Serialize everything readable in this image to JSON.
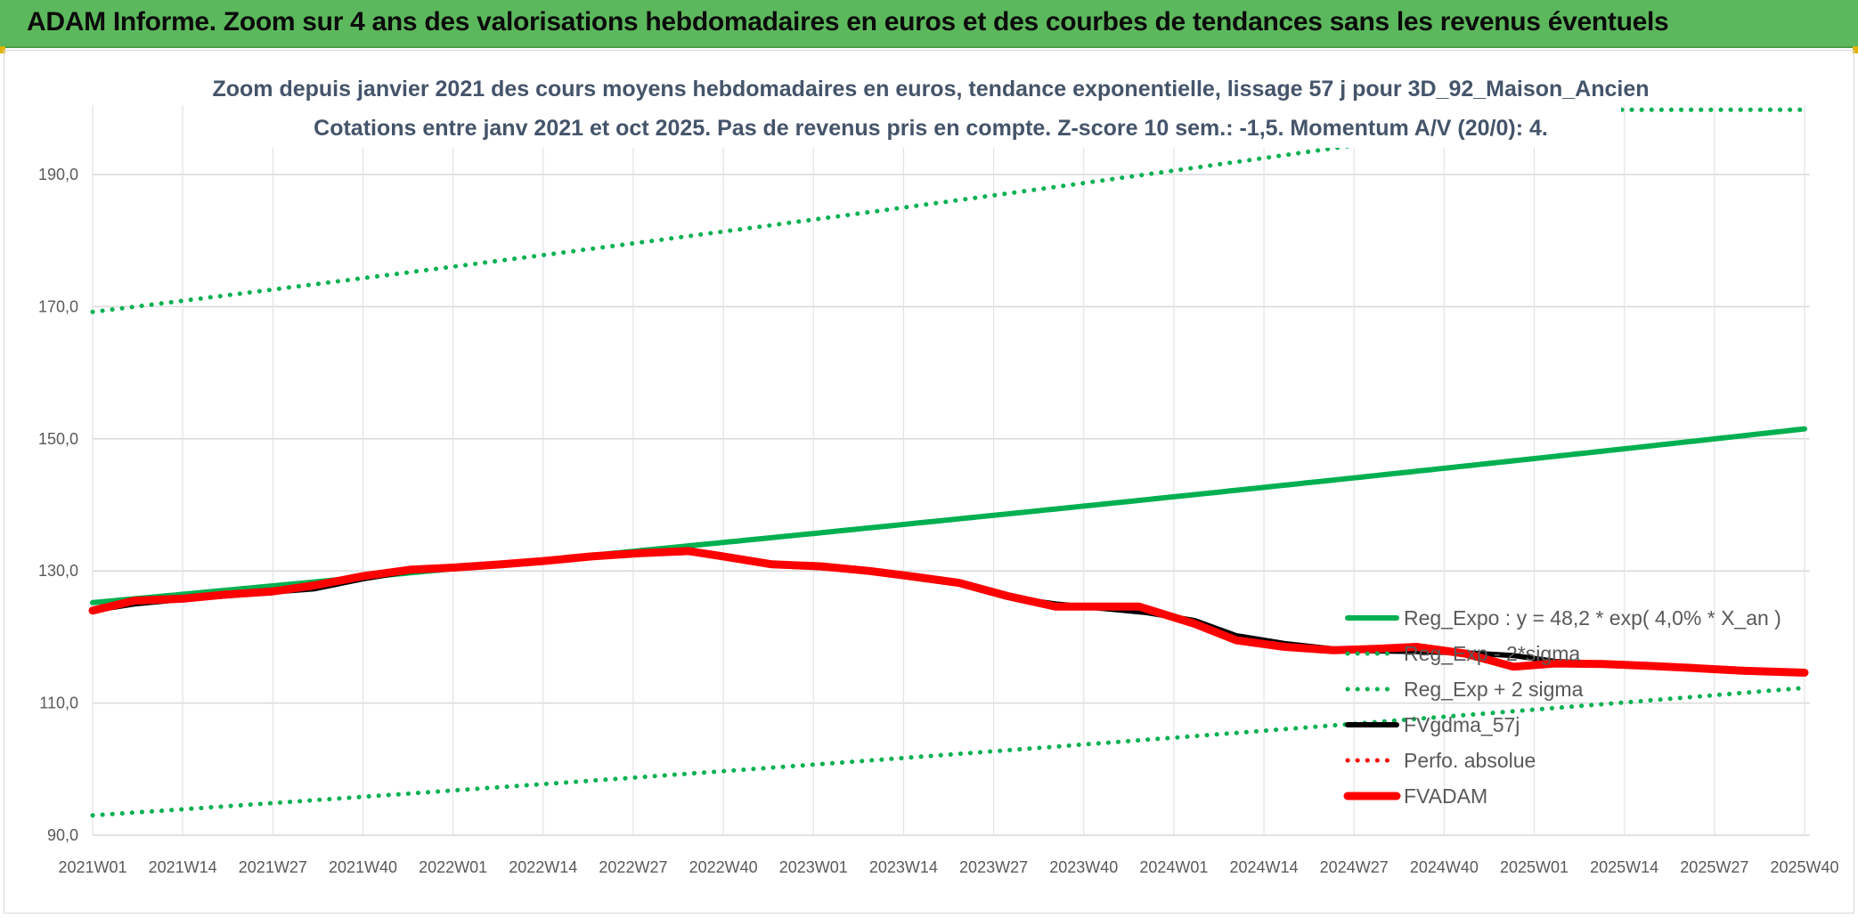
{
  "banner": {
    "title": "ADAM Informe. Zoom sur 4 ans des valorisations hebdomadaires en euros et des courbes de tendances sans les revenus éventuels",
    "color": "#5cb85c"
  },
  "chart_data": {
    "type": "line",
    "title": "Zoom depuis janvier 2021 des cours moyens hebdomadaires en euros, tendance exponentielle, lissage 57 j pour 3D_92_Maison_Ancien",
    "subtitle": "Cotations entre janv 2021 et oct 2025. Pas de revenus pris en compte. Z-score 10 sem.: -1,5. Momentum A/V (20/0): 4.",
    "xlabel": "",
    "ylabel": "",
    "ylim": [
      90,
      200
    ],
    "y_ticks": [
      "90,0",
      "110,0",
      "130,0",
      "150,0",
      "170,0",
      "190,0"
    ],
    "x_range_weeks": [
      1,
      248
    ],
    "x_tick_labels": [
      "2021W01",
      "2021W14",
      "2021W27",
      "2021W40",
      "2022W01",
      "2022W14",
      "2022W27",
      "2022W40",
      "2023W01",
      "2023W14",
      "2023W27",
      "2023W40",
      "2024W01",
      "2024W14",
      "2024W27",
      "2024W40",
      "2025W01",
      "2025W14",
      "2025W27",
      "2025W40"
    ],
    "grid": true,
    "legend_position": "bottom-right",
    "series": [
      {
        "name": "Reg_Expo : y = 48,2 * exp( 4,0% *  X_an )",
        "style": "solid",
        "color": "#00b050",
        "x": [
          1,
          248
        ],
        "values": [
          125.2,
          151.5
        ],
        "exponential": true
      },
      {
        "name": "Reg_Exp - 2*sigma",
        "style": "dotted",
        "color": "#00b050",
        "x": [
          1,
          248
        ],
        "values": [
          93.0,
          112.3
        ],
        "exponential": true
      },
      {
        "name": "Reg_Exp + 2 sigma",
        "style": "dotted",
        "color": "#00b050",
        "x": [
          1,
          248
        ],
        "values": [
          169.2,
          204.3
        ],
        "exponential": true,
        "cap": 199.8
      },
      {
        "name": "FVgdma_57j",
        "style": "solid",
        "color": "#000000",
        "x": [
          1,
          7,
          14,
          20,
          27,
          33,
          40,
          47,
          53,
          60,
          66,
          73,
          80,
          87,
          92,
          99,
          106,
          113,
          119,
          126,
          133,
          140,
          147,
          153,
          160,
          166,
          173,
          180,
          186,
          192,
          199,
          206,
          212,
          219,
          226,
          232,
          239,
          248
        ],
        "values": [
          124.0,
          125.0,
          125.7,
          126.2,
          126.8,
          127.3,
          128.8,
          130.0,
          130.4,
          130.9,
          131.5,
          132.1,
          132.6,
          132.8,
          132.2,
          131.0,
          130.5,
          130.0,
          129.0,
          128.0,
          126.0,
          125.0,
          124.3,
          123.7,
          122.5,
          120.2,
          119.0,
          118.2,
          117.9,
          117.8,
          117.6,
          117.2,
          116.3,
          116.0,
          115.6,
          115.2,
          114.8,
          114.5
        ]
      },
      {
        "name": "Perfo. absolue",
        "style": "dotted",
        "color": "#ff0000",
        "x": [],
        "values": []
      },
      {
        "name": "FVADAM",
        "style": "solid-thick",
        "color": "#ff0000",
        "x": [
          1,
          7,
          14,
          20,
          27,
          33,
          40,
          47,
          53,
          60,
          66,
          73,
          80,
          87,
          92,
          99,
          106,
          113,
          119,
          126,
          133,
          140,
          147,
          152,
          160,
          166,
          173,
          180,
          186,
          192,
          199,
          206,
          212,
          219,
          226,
          232,
          239,
          248
        ],
        "values": [
          124.0,
          125.5,
          125.8,
          126.4,
          126.9,
          127.8,
          129.2,
          130.2,
          130.5,
          131.0,
          131.5,
          132.2,
          132.7,
          133.0,
          132.2,
          131.0,
          130.7,
          130.0,
          129.2,
          128.2,
          126.2,
          124.6,
          124.6,
          124.6,
          122.0,
          119.5,
          118.5,
          118.0,
          118.2,
          118.5,
          117.5,
          115.5,
          116.0,
          115.9,
          115.6,
          115.3,
          114.9,
          114.6
        ]
      }
    ]
  }
}
